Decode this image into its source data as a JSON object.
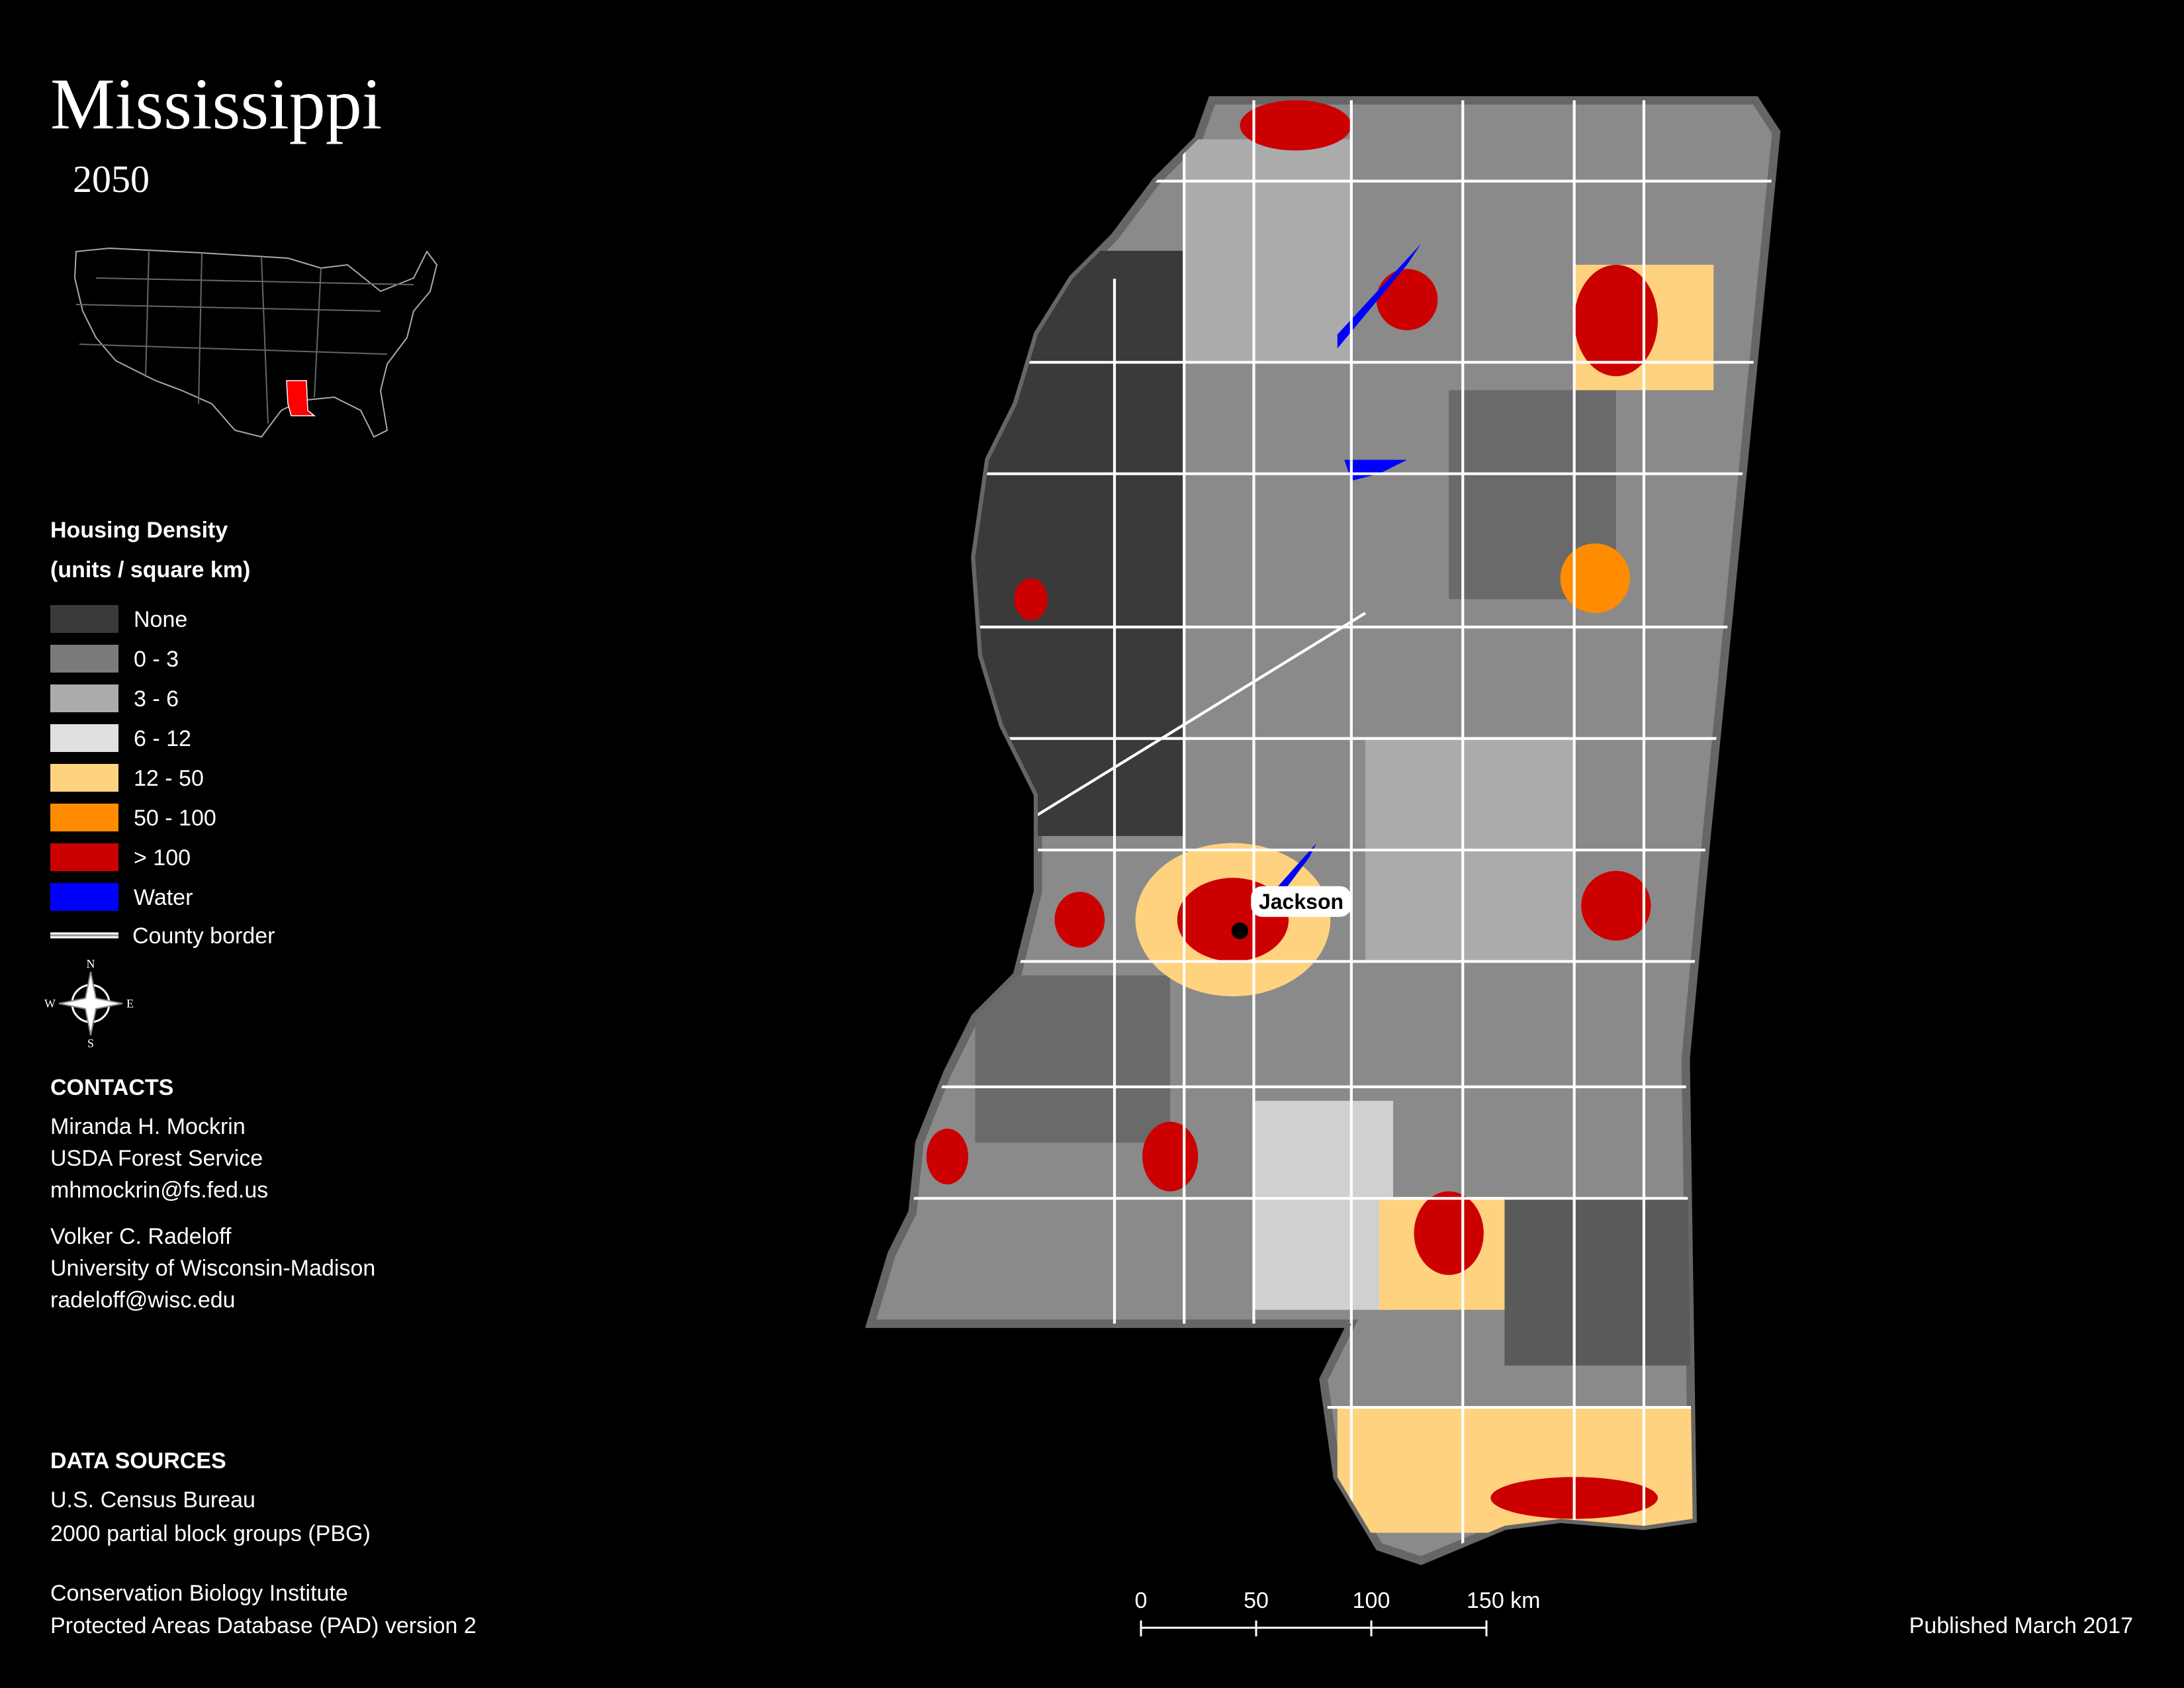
{
  "header": {
    "title": "Mississippi",
    "subtitle": "2050"
  },
  "legend": {
    "title": "Housing Density",
    "units": "(units / square km)",
    "items": [
      {
        "label": "None",
        "color": "#3a3a3a"
      },
      {
        "label": "0 - 3",
        "color": "#7a7a7a"
      },
      {
        "label": "3 - 6",
        "color": "#ababab"
      },
      {
        "label": "6 - 12",
        "color": "#e0e0e0"
      },
      {
        "label": "12 - 50",
        "color": "#ffd27f"
      },
      {
        "label": "50 - 100",
        "color": "#ff8c00"
      },
      {
        "label": "> 100",
        "color": "#cc0000"
      },
      {
        "label": "Water",
        "color": "#0000ff"
      }
    ],
    "border_label": "County border"
  },
  "compass": {
    "n": "N",
    "e": "E",
    "s": "S",
    "w": "W"
  },
  "contacts": {
    "title": "CONTACTS",
    "people": [
      {
        "name": "Miranda H. Mockrin",
        "org": "USDA Forest Service",
        "email": "mhmockrin@fs.fed.us"
      },
      {
        "name": "Volker C. Radeloff",
        "org": "University of Wisconsin-Madison",
        "email": "radeloff@wisc.edu"
      }
    ]
  },
  "sources": {
    "title": "DATA SOURCES",
    "lines": [
      "U.S. Census Bureau",
      "2000 partial block groups (PBG)",
      "Conservation Biology Institute",
      "Protected Areas Database (PAD) version 2"
    ]
  },
  "map": {
    "city": "Jackson"
  },
  "scale_bar": {
    "labels": [
      "0",
      "50",
      "100",
      "150 km"
    ]
  },
  "footer": {
    "published": "Published March 2017"
  }
}
